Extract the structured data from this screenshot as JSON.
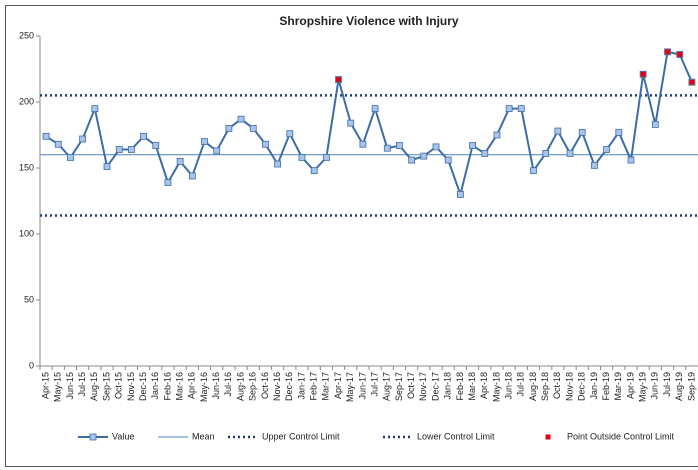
{
  "chart_data": {
    "type": "line",
    "title": "Shropshire Violence with Injury",
    "categories": [
      "Apr-15",
      "May-15",
      "Jun-15",
      "Jul-15",
      "Aug-15",
      "Sep-15",
      "Oct-15",
      "Nov-15",
      "Dec-15",
      "Jan-16",
      "Feb-16",
      "Mar-16",
      "Apr-16",
      "May-16",
      "Jun-16",
      "Jul-16",
      "Aug-16",
      "Sep-16",
      "Oct-16",
      "Nov-16",
      "Dec-16",
      "Jan-17",
      "Feb-17",
      "Mar-17",
      "Apr-17",
      "May-17",
      "Jun-17",
      "Jul-17",
      "Aug-17",
      "Sep-17",
      "Oct-17",
      "Nov-17",
      "Dec-17",
      "Jan-18",
      "Feb-18",
      "Mar-18",
      "Apr-18",
      "May-18",
      "Jun-18",
      "Jul-18",
      "Aug-18",
      "Sep-18",
      "Oct-18",
      "Nov-18",
      "Dec-18",
      "Jan-19",
      "Feb-19",
      "Mar-19",
      "Apr-19",
      "May-19",
      "Jun-19",
      "Jul-19",
      "Aug-19",
      "Sep-19"
    ],
    "series": [
      {
        "name": "Value",
        "color": "#3c6da6",
        "marker_fill": "#a9c4eb",
        "values": [
          174,
          168,
          158,
          172,
          195,
          151,
          164,
          164,
          174,
          167,
          139,
          155,
          144,
          170,
          163,
          180,
          187,
          180,
          168,
          153,
          176,
          158,
          148,
          158,
          217,
          184,
          168,
          195,
          165,
          167,
          156,
          159,
          166,
          156,
          130,
          167,
          161,
          175,
          195,
          195,
          148,
          161,
          178,
          161,
          177,
          152,
          164,
          177,
          156,
          221,
          183,
          238,
          236,
          215
        ]
      },
      {
        "name": "Point Outside Control Limit",
        "color": "#e0000f",
        "values": [
          null,
          null,
          null,
          null,
          null,
          null,
          null,
          null,
          null,
          null,
          null,
          null,
          null,
          null,
          null,
          null,
          null,
          null,
          null,
          null,
          null,
          null,
          null,
          null,
          217,
          null,
          null,
          null,
          null,
          null,
          null,
          null,
          null,
          null,
          null,
          null,
          null,
          null,
          null,
          null,
          null,
          null,
          null,
          null,
          null,
          null,
          null,
          null,
          null,
          221,
          null,
          238,
          236,
          215
        ]
      }
    ],
    "reference_lines": [
      {
        "name": "Mean",
        "value": 160,
        "color": "#4f81bd",
        "style": "solid"
      },
      {
        "name": "Upper Control Limit",
        "value": 205,
        "color": "#1f3d7a",
        "style": "dotted"
      },
      {
        "name": "Lower Control Limit",
        "value": 114,
        "color": "#1f3d7a",
        "style": "dotted"
      }
    ],
    "ylim": [
      0,
      250
    ],
    "yticks": [
      0,
      50,
      100,
      150,
      200,
      250
    ],
    "legend": "bottom"
  }
}
